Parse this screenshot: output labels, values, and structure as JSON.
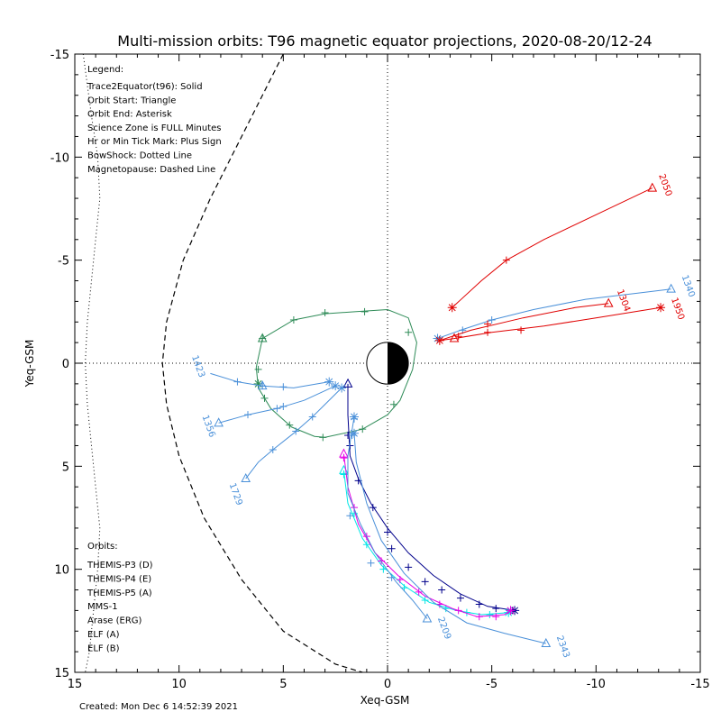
{
  "chart_data": {
    "type": "scatter",
    "title": "Multi-mission orbits: T96 magnetic equator projections, 2020-08-20/12-24",
    "xlabel": "Xeq-GSM",
    "ylabel": "Yeq-GSM",
    "xlim": [
      15,
      -15
    ],
    "ylim": [
      -15,
      15
    ],
    "xticks": [
      15,
      10,
      5,
      0,
      -5,
      -10,
      -15
    ],
    "yticks": [
      -15,
      -10,
      -5,
      0,
      5,
      10,
      15
    ],
    "legend_lines": [
      "Legend:",
      "Trace2Equator(t96): Solid",
      "Orbit Start: Triangle",
      "Orbit End: Asterisk",
      "Science Zone is FULL Minutes",
      "Hr or Min Tick Mark: Plus Sign",
      "BowShock: Dotted Line",
      "Magnetopause: Dashed Line"
    ],
    "orbits_title": "Orbits:",
    "orbit_legend": [
      {
        "name": "THEMIS-P3 (D)",
        "color": "#00e5e5"
      },
      {
        "name": "THEMIS-P4 (E)",
        "color": "#00008b"
      },
      {
        "name": "THEMIS-P5 (A)",
        "color": "#e600e6"
      },
      {
        "name": "MMS-1",
        "color": "#000000"
      },
      {
        "name": "Arase (ERG)",
        "color": "#2e8b57"
      },
      {
        "name": "ELF (A)",
        "color": "#4a90d9"
      },
      {
        "name": "ELF (B)",
        "color": "#e00000"
      }
    ],
    "time_labels": [
      {
        "text": "2050",
        "x": -13.2,
        "y": -8.6,
        "color": "#e00000"
      },
      {
        "text": "1304",
        "x": -11.2,
        "y": -3.0,
        "color": "#e00000"
      },
      {
        "text": "1950",
        "x": -13.8,
        "y": -2.6,
        "color": "#e00000"
      },
      {
        "text": "1340",
        "x": -14.3,
        "y": -3.7,
        "color": "#4a90d9"
      },
      {
        "text": "1423",
        "x": 9.2,
        "y": 0.2,
        "color": "#4a90d9"
      },
      {
        "text": "1356",
        "x": 8.7,
        "y": 3.1,
        "color": "#4a90d9"
      },
      {
        "text": "1729",
        "x": 7.4,
        "y": 6.4,
        "color": "#4a90d9"
      },
      {
        "text": "2209",
        "x": -2.6,
        "y": 12.9,
        "color": "#4a90d9"
      },
      {
        "text": "2343",
        "x": -8.3,
        "y": 13.8,
        "color": "#4a90d9"
      }
    ],
    "bowshock": [
      [
        14.6,
        -15
      ],
      [
        14.2,
        -12
      ],
      [
        13.9,
        -10
      ],
      [
        13.8,
        -8
      ],
      [
        14.0,
        -6
      ],
      [
        14.2,
        -4
      ],
      [
        14.4,
        -2
      ],
      [
        14.5,
        0
      ],
      [
        14.4,
        2
      ],
      [
        14.2,
        4
      ],
      [
        14.0,
        6
      ],
      [
        13.8,
        8
      ],
      [
        13.9,
        10
      ],
      [
        14.1,
        12
      ],
      [
        14.3,
        14
      ],
      [
        14.5,
        15
      ]
    ],
    "magnetopause": [
      [
        5.0,
        -15
      ],
      [
        7.0,
        -11
      ],
      [
        8.5,
        -8
      ],
      [
        9.8,
        -5
      ],
      [
        10.6,
        -2
      ],
      [
        10.8,
        0
      ],
      [
        10.6,
        2
      ],
      [
        10.0,
        4.5
      ],
      [
        8.8,
        7.5
      ],
      [
        7.0,
        10.5
      ],
      [
        5.0,
        13
      ],
      [
        2.5,
        14.6
      ],
      [
        1.2,
        15
      ]
    ],
    "series": [
      {
        "name": "Arase (ERG)",
        "color": "#2e8b57",
        "points": [
          [
            3.0,
            3.6
          ],
          [
            1.2,
            3.2
          ],
          [
            0.0,
            2.5
          ],
          [
            -0.6,
            1.8
          ],
          [
            -1.2,
            0.3
          ],
          [
            -1.4,
            -1.0
          ],
          [
            -1.0,
            -2.2
          ],
          [
            0.0,
            -2.6
          ],
          [
            1.5,
            -2.5
          ],
          [
            3.0,
            -2.4
          ],
          [
            4.5,
            -2.1
          ],
          [
            6.0,
            -1.2
          ],
          [
            6.3,
            0.2
          ],
          [
            6.2,
            1.2
          ],
          [
            5.6,
            2.2
          ],
          [
            4.6,
            3.1
          ],
          [
            3.5,
            3.55
          ],
          [
            3.0,
            3.6
          ]
        ],
        "ticks": [
          [
            1.2,
            3.2
          ],
          [
            -0.3,
            2.0
          ],
          [
            -1.0,
            -1.5
          ],
          [
            1.1,
            -2.5
          ],
          [
            3.0,
            -2.45
          ],
          [
            4.5,
            -2.1
          ],
          [
            6.0,
            -1.2
          ],
          [
            6.2,
            0.3
          ],
          [
            5.9,
            1.7
          ],
          [
            4.7,
            3.0
          ],
          [
            3.1,
            3.6
          ]
        ],
        "start": [
          6.0,
          -1.2
        ],
        "end": [
          6.2,
          1.0
        ]
      },
      {
        "name": "THEMIS-P4 (E)",
        "color": "#00008b",
        "points": [
          [
            1.9,
            1.0
          ],
          [
            1.9,
            2.5
          ],
          [
            1.8,
            4.5
          ],
          [
            1.4,
            5.6
          ],
          [
            0.8,
            6.8
          ],
          [
            0.0,
            8.0
          ],
          [
            -1.0,
            9.2
          ],
          [
            -2.2,
            10.3
          ],
          [
            -3.5,
            11.2
          ],
          [
            -4.8,
            11.8
          ],
          [
            -6.1,
            12.0
          ]
        ],
        "ticks": [
          [
            1.9,
            3.5
          ],
          [
            1.8,
            4.0
          ],
          [
            1.4,
            5.7
          ],
          [
            0.7,
            7.0
          ],
          [
            0.0,
            8.2
          ],
          [
            -0.2,
            9.0
          ],
          [
            -1.0,
            9.9
          ],
          [
            -1.8,
            10.6
          ],
          [
            -2.6,
            11.0
          ],
          [
            -3.5,
            11.4
          ],
          [
            -4.4,
            11.7
          ],
          [
            -5.2,
            11.9
          ],
          [
            -6.0,
            12.0
          ]
        ],
        "start": [
          1.9,
          1.0
        ],
        "end": [
          -6.1,
          12.0
        ]
      },
      {
        "name": "THEMIS-P3 (D)",
        "color": "#00e5e5",
        "points": [
          [
            2.1,
            5.2
          ],
          [
            1.9,
            6.8
          ],
          [
            1.2,
            8.5
          ],
          [
            0.3,
            9.8
          ],
          [
            -0.8,
            10.8
          ],
          [
            -2.0,
            11.6
          ],
          [
            -3.3,
            12.0
          ],
          [
            -4.5,
            12.2
          ],
          [
            -5.8,
            12.1
          ]
        ],
        "ticks": [
          [
            2.1,
            5.4
          ],
          [
            1.6,
            7.3
          ],
          [
            1.0,
            8.8
          ],
          [
            0.2,
            10.0
          ],
          [
            -0.8,
            10.9
          ],
          [
            -1.8,
            11.5
          ],
          [
            -2.8,
            11.9
          ],
          [
            -3.8,
            12.1
          ],
          [
            -4.9,
            12.2
          ]
        ],
        "start": [
          2.1,
          5.2
        ],
        "end": [
          -5.8,
          12.1
        ]
      },
      {
        "name": "THEMIS-P5 (A)",
        "color": "#e600e6",
        "points": [
          [
            2.1,
            4.4
          ],
          [
            1.9,
            6.0
          ],
          [
            1.4,
            7.8
          ],
          [
            0.6,
            9.2
          ],
          [
            -0.5,
            10.3
          ],
          [
            -1.8,
            11.3
          ],
          [
            -3.1,
            11.9
          ],
          [
            -4.3,
            12.3
          ],
          [
            -5.6,
            12.2
          ],
          [
            -5.9,
            12.0
          ]
        ],
        "ticks": [
          [
            2.1,
            4.6
          ],
          [
            1.6,
            7.0
          ],
          [
            1.0,
            8.4
          ],
          [
            0.3,
            9.6
          ],
          [
            -0.6,
            10.5
          ],
          [
            -1.5,
            11.1
          ],
          [
            -2.5,
            11.7
          ],
          [
            -3.4,
            12.0
          ],
          [
            -4.4,
            12.3
          ],
          [
            -5.2,
            12.3
          ]
        ],
        "start": [
          2.1,
          4.4
        ],
        "end": [
          -5.9,
          12.0
        ]
      },
      {
        "name": "ELF (A)",
        "color": "#4a90d9",
        "points": [
          [
            1.6,
            2.6
          ],
          [
            1.9,
            4.5
          ],
          [
            1.9,
            6.3
          ],
          [
            1.3,
            7.8
          ],
          [
            0.6,
            9.2
          ],
          [
            -0.4,
            10.6
          ],
          [
            -1.2,
            11.5
          ],
          [
            -1.9,
            12.4
          ]
        ],
        "ticks": [
          [
            1.6,
            2.7
          ],
          [
            1.7,
            3.5
          ],
          [
            1.8,
            7.4
          ],
          [
            0.8,
            9.7
          ],
          [
            -0.2,
            10.4
          ]
        ],
        "start": [
          -1.9,
          12.4
        ],
        "end": [
          1.6,
          2.6
        ]
      },
      {
        "name": "ELF (A) 2343",
        "color": "#4a90d9",
        "points": [
          [
            1.6,
            3.4
          ],
          [
            1.5,
            4.8
          ],
          [
            1.0,
            6.8
          ],
          [
            0.3,
            8.6
          ],
          [
            -0.8,
            10.2
          ],
          [
            -2.2,
            11.6
          ],
          [
            -3.8,
            12.6
          ],
          [
            -5.6,
            13.1
          ],
          [
            -7.6,
            13.6
          ]
        ],
        "ticks": [],
        "start": [
          -7.6,
          13.6
        ],
        "end": [
          1.6,
          3.4
        ]
      },
      {
        "name": "ELF (A) 1423",
        "color": "#4a90d9",
        "points": [
          [
            8.5,
            0.5
          ],
          [
            7.2,
            0.9
          ],
          [
            6.0,
            1.1
          ],
          [
            4.5,
            1.2
          ],
          [
            2.8,
            0.9
          ]
        ],
        "ticks": [
          [
            7.2,
            0.9
          ],
          [
            6.0,
            1.1
          ],
          [
            5.0,
            1.15
          ]
        ],
        "start": [
          6.0,
          1.1
        ],
        "end": [
          2.8,
          0.9
        ]
      },
      {
        "name": "ELF (A) 1356",
        "color": "#4a90d9",
        "points": [
          [
            8.1,
            2.9
          ],
          [
            6.7,
            2.5
          ],
          [
            5.3,
            2.2
          ],
          [
            4.0,
            1.8
          ],
          [
            2.5,
            1.1
          ]
        ],
        "ticks": [
          [
            6.7,
            2.5
          ],
          [
            5.3,
            2.2
          ],
          [
            5.0,
            2.1
          ]
        ],
        "start": [
          8.1,
          2.9
        ],
        "end": [
          2.5,
          1.1
        ]
      },
      {
        "name": "ELF (A) 1729",
        "color": "#4a90d9",
        "points": [
          [
            6.8,
            5.6
          ],
          [
            6.2,
            4.8
          ],
          [
            5.5,
            4.2
          ],
          [
            4.5,
            3.4
          ],
          [
            3.6,
            2.6
          ],
          [
            2.2,
            1.2
          ]
        ],
        "ticks": [
          [
            5.5,
            4.2
          ],
          [
            4.4,
            3.3
          ],
          [
            3.6,
            2.6
          ]
        ],
        "start": [
          6.8,
          5.6
        ],
        "end": [
          2.2,
          1.2
        ]
      },
      {
        "name": "ELF (A) 1340",
        "color": "#4a90d9",
        "points": [
          [
            -2.4,
            -1.2
          ],
          [
            -3.5,
            -1.6
          ],
          [
            -5.0,
            -2.1
          ],
          [
            -7.0,
            -2.6
          ],
          [
            -9.5,
            -3.1
          ],
          [
            -12.0,
            -3.4
          ],
          [
            -13.6,
            -3.6
          ]
        ],
        "ticks": [
          [
            -3.6,
            -1.6
          ],
          [
            -5.0,
            -2.1
          ]
        ],
        "start": [
          -13.6,
          -3.6
        ],
        "end": [
          -2.4,
          -1.2
        ]
      },
      {
        "name": "ELF (B) 2050",
        "color": "#e00000",
        "points": [
          [
            -3.1,
            -2.7
          ],
          [
            -4.5,
            -4.0
          ],
          [
            -5.7,
            -5.0
          ],
          [
            -7.5,
            -6.0
          ],
          [
            -10.2,
            -7.3
          ],
          [
            -12.7,
            -8.5
          ]
        ],
        "ticks": [
          [
            -5.7,
            -5.0
          ]
        ],
        "start": [
          -12.7,
          -8.5
        ],
        "end": [
          -3.1,
          -2.7
        ]
      },
      {
        "name": "ELF (B) 1304",
        "color": "#e00000",
        "points": [
          [
            -2.5,
            -1.1
          ],
          [
            -4.0,
            -1.6
          ],
          [
            -6.5,
            -2.2
          ],
          [
            -9.0,
            -2.7
          ],
          [
            -10.6,
            -2.9
          ]
        ],
        "ticks": [
          [
            -4.8,
            -1.9
          ]
        ],
        "start": [
          -10.6,
          -2.9
        ],
        "end": [
          -2.5,
          -1.1
        ]
      },
      {
        "name": "ELF (B) 1950",
        "color": "#e00000",
        "points": [
          [
            -2.5,
            -1.1
          ],
          [
            -3.2,
            -1.2
          ],
          [
            -5.0,
            -1.5
          ],
          [
            -7.5,
            -1.8
          ],
          [
            -10.0,
            -2.2
          ],
          [
            -13.1,
            -2.7
          ]
        ],
        "ticks": [
          [
            -3.4,
            -1.3
          ],
          [
            -4.8,
            -1.5
          ],
          [
            -6.4,
            -1.6
          ]
        ],
        "start": [
          -3.2,
          -1.2
        ],
        "end": [
          -13.1,
          -2.7
        ]
      }
    ]
  },
  "footer": {
    "created": "Created: Mon Dec  6 14:52:39 2021"
  }
}
